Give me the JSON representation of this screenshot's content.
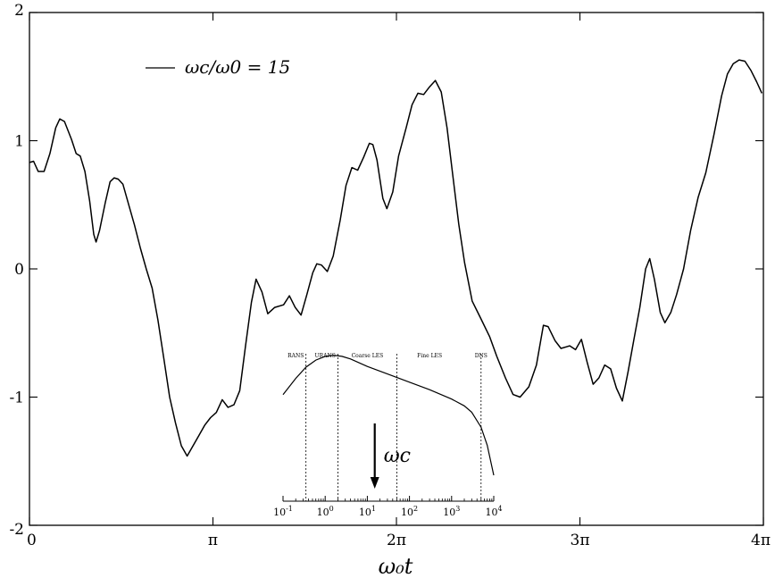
{
  "chart_data": [
    {
      "type": "line",
      "title": "",
      "xlabel": "ω₀t",
      "ylabel": "",
      "xlim": [
        0,
        12.566
      ],
      "ylim": [
        -2,
        2
      ],
      "x_ticks": [
        {
          "value": 0,
          "label": "0"
        },
        {
          "value": 3.1416,
          "label": "π"
        },
        {
          "value": 6.2832,
          "label": "2π"
        },
        {
          "value": 9.4248,
          "label": "3π"
        },
        {
          "value": 12.566,
          "label": "4π"
        }
      ],
      "y_ticks": [
        {
          "value": -2,
          "label": "-2"
        },
        {
          "value": -1,
          "label": "-1"
        },
        {
          "value": 0,
          "label": "0"
        },
        {
          "value": 1,
          "label": "1"
        },
        {
          "value": 2,
          "label": "2"
        }
      ],
      "legend": {
        "position": "top-left",
        "entries": [
          "ωc/ω0 = 15"
        ]
      },
      "series": [
        {
          "name": "ωc/ω0 = 15",
          "color": "#000000",
          "points": [
            [
              0.0,
              0.83
            ],
            [
              0.07,
              0.84
            ],
            [
              0.15,
              0.76
            ],
            [
              0.25,
              0.76
            ],
            [
              0.35,
              0.9
            ],
            [
              0.45,
              1.1
            ],
            [
              0.52,
              1.17
            ],
            [
              0.6,
              1.15
            ],
            [
              0.72,
              1.01
            ],
            [
              0.8,
              0.9
            ],
            [
              0.87,
              0.88
            ],
            [
              0.95,
              0.76
            ],
            [
              1.03,
              0.53
            ],
            [
              1.1,
              0.27
            ],
            [
              1.14,
              0.21
            ],
            [
              1.2,
              0.3
            ],
            [
              1.3,
              0.52
            ],
            [
              1.38,
              0.68
            ],
            [
              1.45,
              0.71
            ],
            [
              1.52,
              0.7
            ],
            [
              1.6,
              0.66
            ],
            [
              1.7,
              0.5
            ],
            [
              1.8,
              0.34
            ],
            [
              1.9,
              0.16
            ],
            [
              2.0,
              0.0
            ],
            [
              2.1,
              -0.15
            ],
            [
              2.2,
              -0.4
            ],
            [
              2.3,
              -0.7
            ],
            [
              2.4,
              -1.0
            ],
            [
              2.5,
              -1.2
            ],
            [
              2.6,
              -1.38
            ],
            [
              2.7,
              -1.46
            ],
            [
              2.8,
              -1.38
            ],
            [
              2.9,
              -1.3
            ],
            [
              3.0,
              -1.22
            ],
            [
              3.1,
              -1.16
            ],
            [
              3.2,
              -1.12
            ],
            [
              3.3,
              -1.02
            ],
            [
              3.4,
              -1.08
            ],
            [
              3.5,
              -1.06
            ],
            [
              3.6,
              -0.95
            ],
            [
              3.7,
              -0.6
            ],
            [
              3.8,
              -0.26
            ],
            [
              3.88,
              -0.08
            ],
            [
              3.98,
              -0.18
            ],
            [
              4.08,
              -0.35
            ],
            [
              4.2,
              -0.3
            ],
            [
              4.35,
              -0.28
            ],
            [
              4.45,
              -0.21
            ],
            [
              4.55,
              -0.3
            ],
            [
              4.65,
              -0.36
            ],
            [
              4.75,
              -0.2
            ],
            [
              4.85,
              -0.03
            ],
            [
              4.92,
              0.04
            ],
            [
              5.0,
              0.03
            ],
            [
              5.1,
              -0.02
            ],
            [
              5.2,
              0.1
            ],
            [
              5.32,
              0.38
            ],
            [
              5.42,
              0.65
            ],
            [
              5.52,
              0.79
            ],
            [
              5.62,
              0.77
            ],
            [
              5.72,
              0.87
            ],
            [
              5.82,
              0.98
            ],
            [
              5.88,
              0.97
            ],
            [
              5.95,
              0.85
            ],
            [
              6.05,
              0.55
            ],
            [
              6.12,
              0.47
            ],
            [
              6.22,
              0.6
            ],
            [
              6.32,
              0.88
            ],
            [
              6.45,
              1.1
            ],
            [
              6.55,
              1.28
            ],
            [
              6.65,
              1.37
            ],
            [
              6.75,
              1.36
            ],
            [
              6.85,
              1.42
            ],
            [
              6.95,
              1.47
            ],
            [
              7.05,
              1.38
            ],
            [
              7.15,
              1.1
            ],
            [
              7.25,
              0.72
            ],
            [
              7.35,
              0.35
            ],
            [
              7.45,
              0.05
            ],
            [
              7.58,
              -0.25
            ],
            [
              7.72,
              -0.38
            ],
            [
              7.88,
              -0.53
            ],
            [
              8.0,
              -0.68
            ],
            [
              8.15,
              -0.85
            ],
            [
              8.28,
              -0.98
            ],
            [
              8.4,
              -1.0
            ],
            [
              8.55,
              -0.92
            ],
            [
              8.68,
              -0.75
            ],
            [
              8.8,
              -0.44
            ],
            [
              8.88,
              -0.45
            ],
            [
              9.0,
              -0.56
            ],
            [
              9.1,
              -0.62
            ],
            [
              9.25,
              -0.6
            ],
            [
              9.35,
              -0.63
            ],
            [
              9.45,
              -0.55
            ],
            [
              9.55,
              -0.73
            ],
            [
              9.65,
              -0.9
            ],
            [
              9.75,
              -0.85
            ],
            [
              9.85,
              -0.75
            ],
            [
              9.95,
              -0.78
            ],
            [
              10.05,
              -0.93
            ],
            [
              10.15,
              -1.03
            ],
            [
              10.25,
              -0.8
            ],
            [
              10.35,
              -0.55
            ],
            [
              10.45,
              -0.3
            ],
            [
              10.55,
              0.0
            ],
            [
              10.62,
              0.08
            ],
            [
              10.7,
              -0.08
            ],
            [
              10.8,
              -0.34
            ],
            [
              10.88,
              -0.42
            ],
            [
              10.98,
              -0.34
            ],
            [
              11.08,
              -0.2
            ],
            [
              11.2,
              0.0
            ],
            [
              11.32,
              0.3
            ],
            [
              11.45,
              0.56
            ],
            [
              11.58,
              0.75
            ],
            [
              11.72,
              1.05
            ],
            [
              11.85,
              1.35
            ],
            [
              11.95,
              1.52
            ],
            [
              12.05,
              1.6
            ],
            [
              12.15,
              1.63
            ],
            [
              12.25,
              1.62
            ],
            [
              12.35,
              1.55
            ],
            [
              12.45,
              1.46
            ],
            [
              12.54,
              1.37
            ]
          ]
        }
      ]
    },
    {
      "type": "line",
      "title": "",
      "xlabel": "",
      "ylabel": "",
      "xscale": "log",
      "xlim": [
        0.1,
        10000
      ],
      "x_ticks": [
        {
          "value": 0.1,
          "base": "10",
          "exp": "-1"
        },
        {
          "value": 1,
          "base": "10",
          "exp": "0"
        },
        {
          "value": 10,
          "base": "10",
          "exp": "1"
        },
        {
          "value": 100,
          "base": "10",
          "exp": "2"
        },
        {
          "value": 1000,
          "base": "10",
          "exp": "3"
        },
        {
          "value": 10000,
          "base": "10",
          "exp": "4"
        }
      ],
      "regions": [
        {
          "label": "RANS",
          "at": 0.2
        },
        {
          "label": "URANS",
          "at": 1.0
        },
        {
          "label": "Coarse LES",
          "at": 10
        },
        {
          "label": "Fine LES",
          "at": 300
        },
        {
          "label": "DNS",
          "at": 5000
        }
      ],
      "dividers": [
        0.35,
        2.0,
        50,
        5000
      ],
      "annotation": {
        "label": "ωc",
        "at": 15
      },
      "series": [
        {
          "name": "",
          "color": "#000000",
          "points": [
            [
              0.1,
              -0.85
            ],
            [
              0.2,
              -0.42
            ],
            [
              0.35,
              -0.12
            ],
            [
              0.6,
              0.07
            ],
            [
              1.0,
              0.17
            ],
            [
              1.6,
              0.2
            ],
            [
              2.5,
              0.17
            ],
            [
              4,
              0.1
            ],
            [
              10,
              -0.1
            ],
            [
              30,
              -0.3
            ],
            [
              100,
              -0.52
            ],
            [
              300,
              -0.72
            ],
            [
              1000,
              -0.97
            ],
            [
              2000,
              -1.15
            ],
            [
              3000,
              -1.32
            ],
            [
              5000,
              -1.72
            ],
            [
              7000,
              -2.2
            ],
            [
              10000,
              -3.0
            ]
          ]
        }
      ]
    }
  ]
}
